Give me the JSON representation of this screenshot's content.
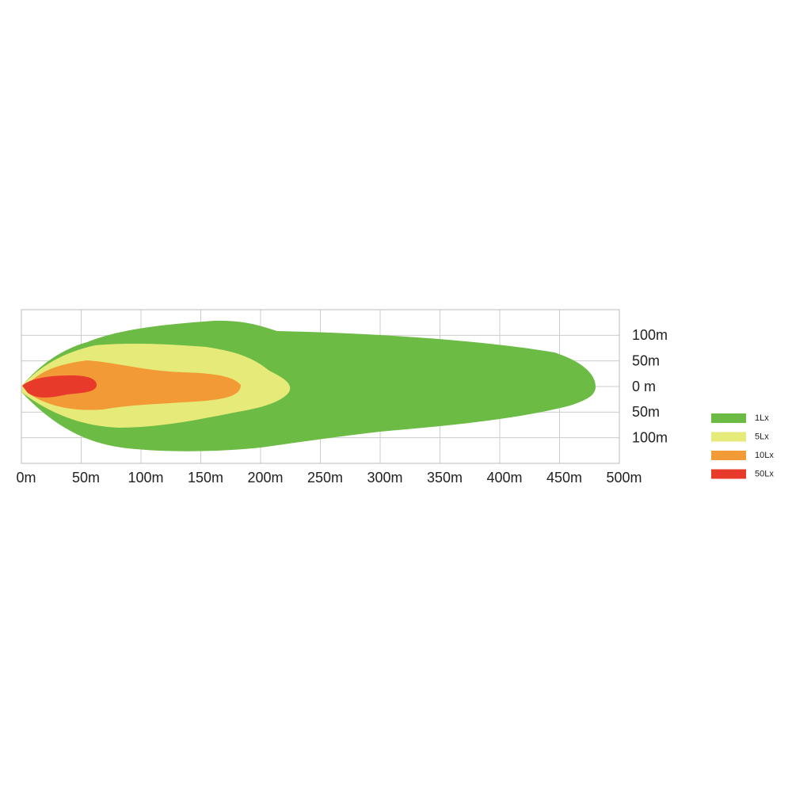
{
  "chart_data": {
    "type": "beam-pattern",
    "xlim": [
      0,
      500
    ],
    "xticks": [
      {
        "value": 0,
        "label": "0m"
      },
      {
        "value": 50,
        "label": "50m"
      },
      {
        "value": 100,
        "label": "100m"
      },
      {
        "value": 150,
        "label": "150m"
      },
      {
        "value": 200,
        "label": "200m"
      },
      {
        "value": 250,
        "label": "250m"
      },
      {
        "value": 300,
        "label": "300m"
      },
      {
        "value": 350,
        "label": "350m"
      },
      {
        "value": 400,
        "label": "400m"
      },
      {
        "value": 450,
        "label": "450m"
      },
      {
        "value": 500,
        "label": "500m"
      }
    ],
    "ylim": [
      -150,
      150
    ],
    "yticks": [
      {
        "value": 100,
        "label": "100m"
      },
      {
        "value": 50,
        "label": "50m"
      },
      {
        "value": 0,
        "label": "0 m"
      },
      {
        "value": -50,
        "label": "50m"
      },
      {
        "value": -100,
        "label": "100m"
      }
    ],
    "grid": true,
    "series": [
      {
        "name": "1Lx",
        "color": "#6cbb45"
      },
      {
        "name": "5Lx",
        "color": "#e6ea78"
      },
      {
        "name": "10Lx",
        "color": "#f29a35"
      },
      {
        "name": "50Lx",
        "color": "#e83a2a"
      }
    ]
  }
}
